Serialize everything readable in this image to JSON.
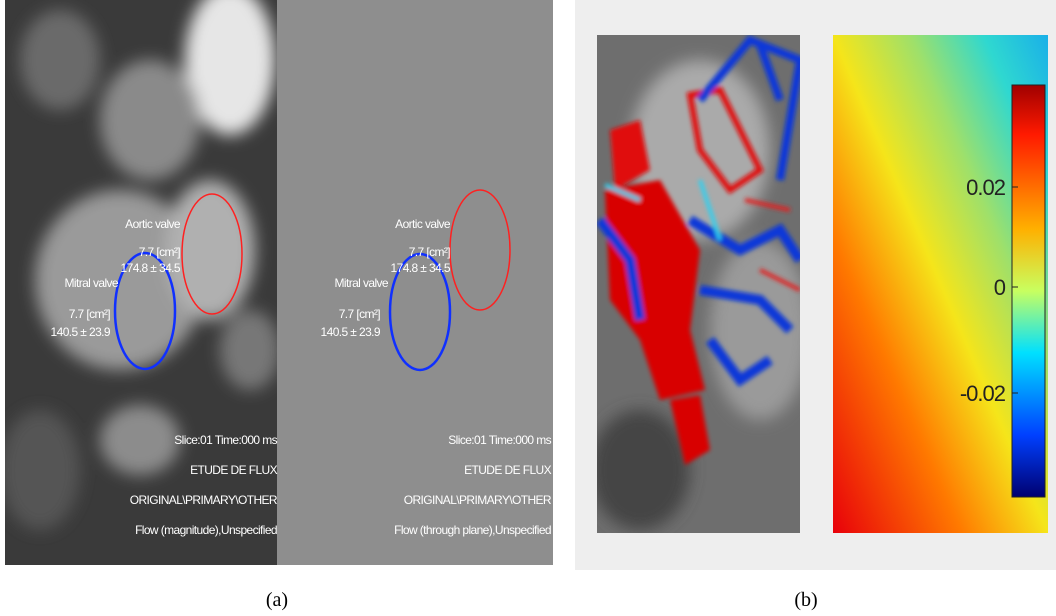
{
  "panels": [
    {
      "label": "(a)",
      "images": [
        {
          "aortic": {
            "name": "Aortic valve",
            "area": "7.7 [cm²]",
            "flow": "174.8 ± 34.5"
          },
          "mitral": {
            "name": "Mitral valve",
            "area": "7.7 [cm²]",
            "flow": "140.5 ± 23.9"
          },
          "info": [
            "Slice:01 Time:000 ms",
            "ETUDE DE FLUX",
            "ORIGINAL\\PRIMARY\\OTHER",
            "Flow (magnitude),Unspecified"
          ]
        },
        {
          "aortic": {
            "name": "Aortic valve",
            "area": "7.7 [cm²]",
            "flow": "174.8 ± 34.5"
          },
          "mitral": {
            "name": "Mitral valve",
            "area": "7.7 [cm²]",
            "flow": "140.5 ± 23.9"
          },
          "info": [
            "Slice:01 Time:000 ms",
            "ETUDE DE FLUX",
            "ORIGINAL\\PRIMARY\\OTHER",
            "Flow (through plane),Unspecified"
          ]
        }
      ]
    },
    {
      "label": "(b)",
      "colorbar_ticks": [
        "0.02",
        "0",
        "-0.02"
      ]
    }
  ]
}
